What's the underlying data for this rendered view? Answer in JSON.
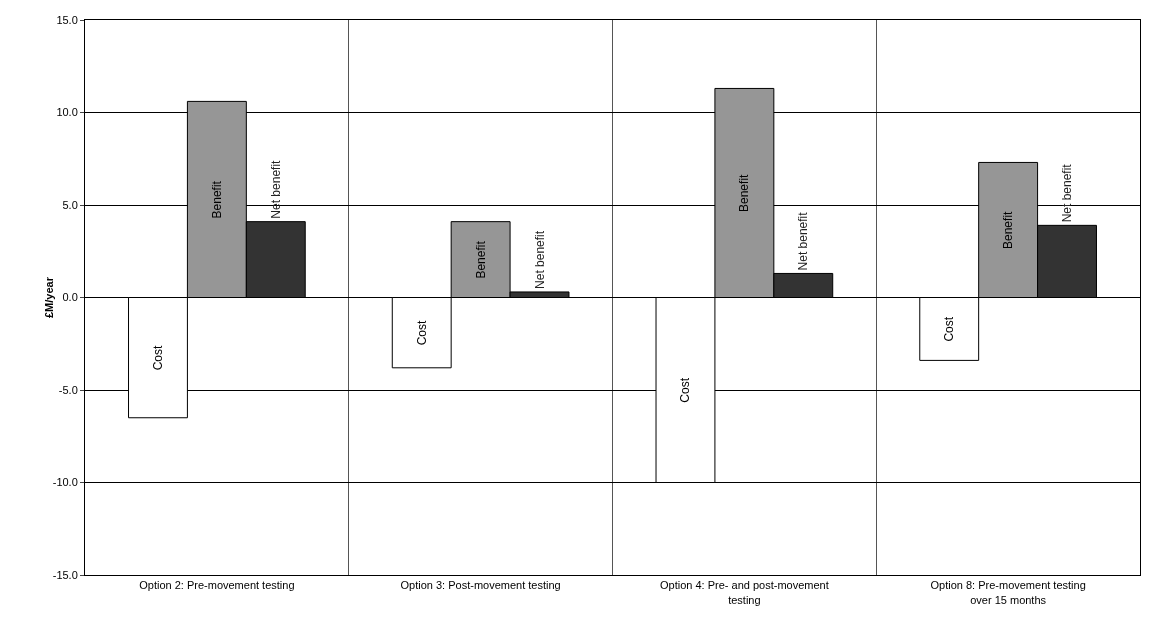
{
  "chart_data": {
    "type": "bar",
    "ylabel": "£M/year",
    "categories": [
      "Option 2: Pre-movement testing",
      "Option 3: Post-movement testing",
      "Option 4: Pre- and post-movement testing",
      "Option 8: Pre-movement testing over 15 months"
    ],
    "series": [
      {
        "name": "Cost",
        "color": "#ffffff",
        "values": [
          -6.5,
          -3.8,
          -10.0,
          -3.4
        ]
      },
      {
        "name": "Benefit",
        "color": "#969696",
        "values": [
          10.6,
          4.1,
          11.3,
          7.3
        ]
      },
      {
        "name": "Net benefit",
        "color": "#333333",
        "values": [
          4.1,
          0.3,
          1.3,
          3.9
        ]
      }
    ],
    "ylim": [
      -15,
      15
    ],
    "yticks": [
      {
        "value": -15,
        "label": "-15.0"
      },
      {
        "value": -10,
        "label": "-10.0"
      },
      {
        "value": -5,
        "label": "-5.0"
      },
      {
        "value": 0,
        "label": "0.0"
      },
      {
        "value": 5,
        "label": "5.0"
      },
      {
        "value": 10,
        "label": "10.0"
      },
      {
        "value": 15,
        "label": "15.0"
      }
    ],
    "grid": true,
    "legend": false
  }
}
